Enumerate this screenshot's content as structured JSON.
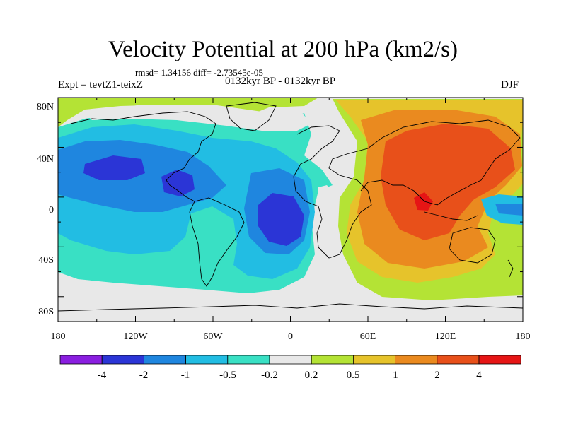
{
  "title": "Velocity Potential at 200 hPa (km2/s)",
  "stats": "rmsd= 1.34156 diff= -2.73545e-05",
  "left_label": "Expt = tevtZ1-teixZ",
  "center_label": "0132kyr BP - 0132kyr BP",
  "right_label": "DJF",
  "map": {
    "projection": "cylindrical equidistant",
    "lon_range": [
      -180,
      180
    ],
    "lat_range": [
      -90,
      90
    ],
    "x_ticks": [
      "180",
      "120W",
      "60W",
      "0",
      "60E",
      "120E",
      "180"
    ],
    "y_ticks": [
      "80N",
      "40N",
      "0",
      "40S",
      "80S"
    ]
  },
  "colorbar": {
    "labels": [
      "-4",
      "-2",
      "-1",
      "-0.5",
      "-0.2",
      "0.2",
      "0.5",
      "1",
      "2",
      "4"
    ],
    "colors": [
      "#8a1ee0",
      "#2b35d6",
      "#1f86df",
      "#22bde3",
      "#39e0c4",
      "#e8e8e8",
      "#b4e335",
      "#e6c32b",
      "#ea8a1f",
      "#e8501a",
      "#e61515"
    ]
  }
}
